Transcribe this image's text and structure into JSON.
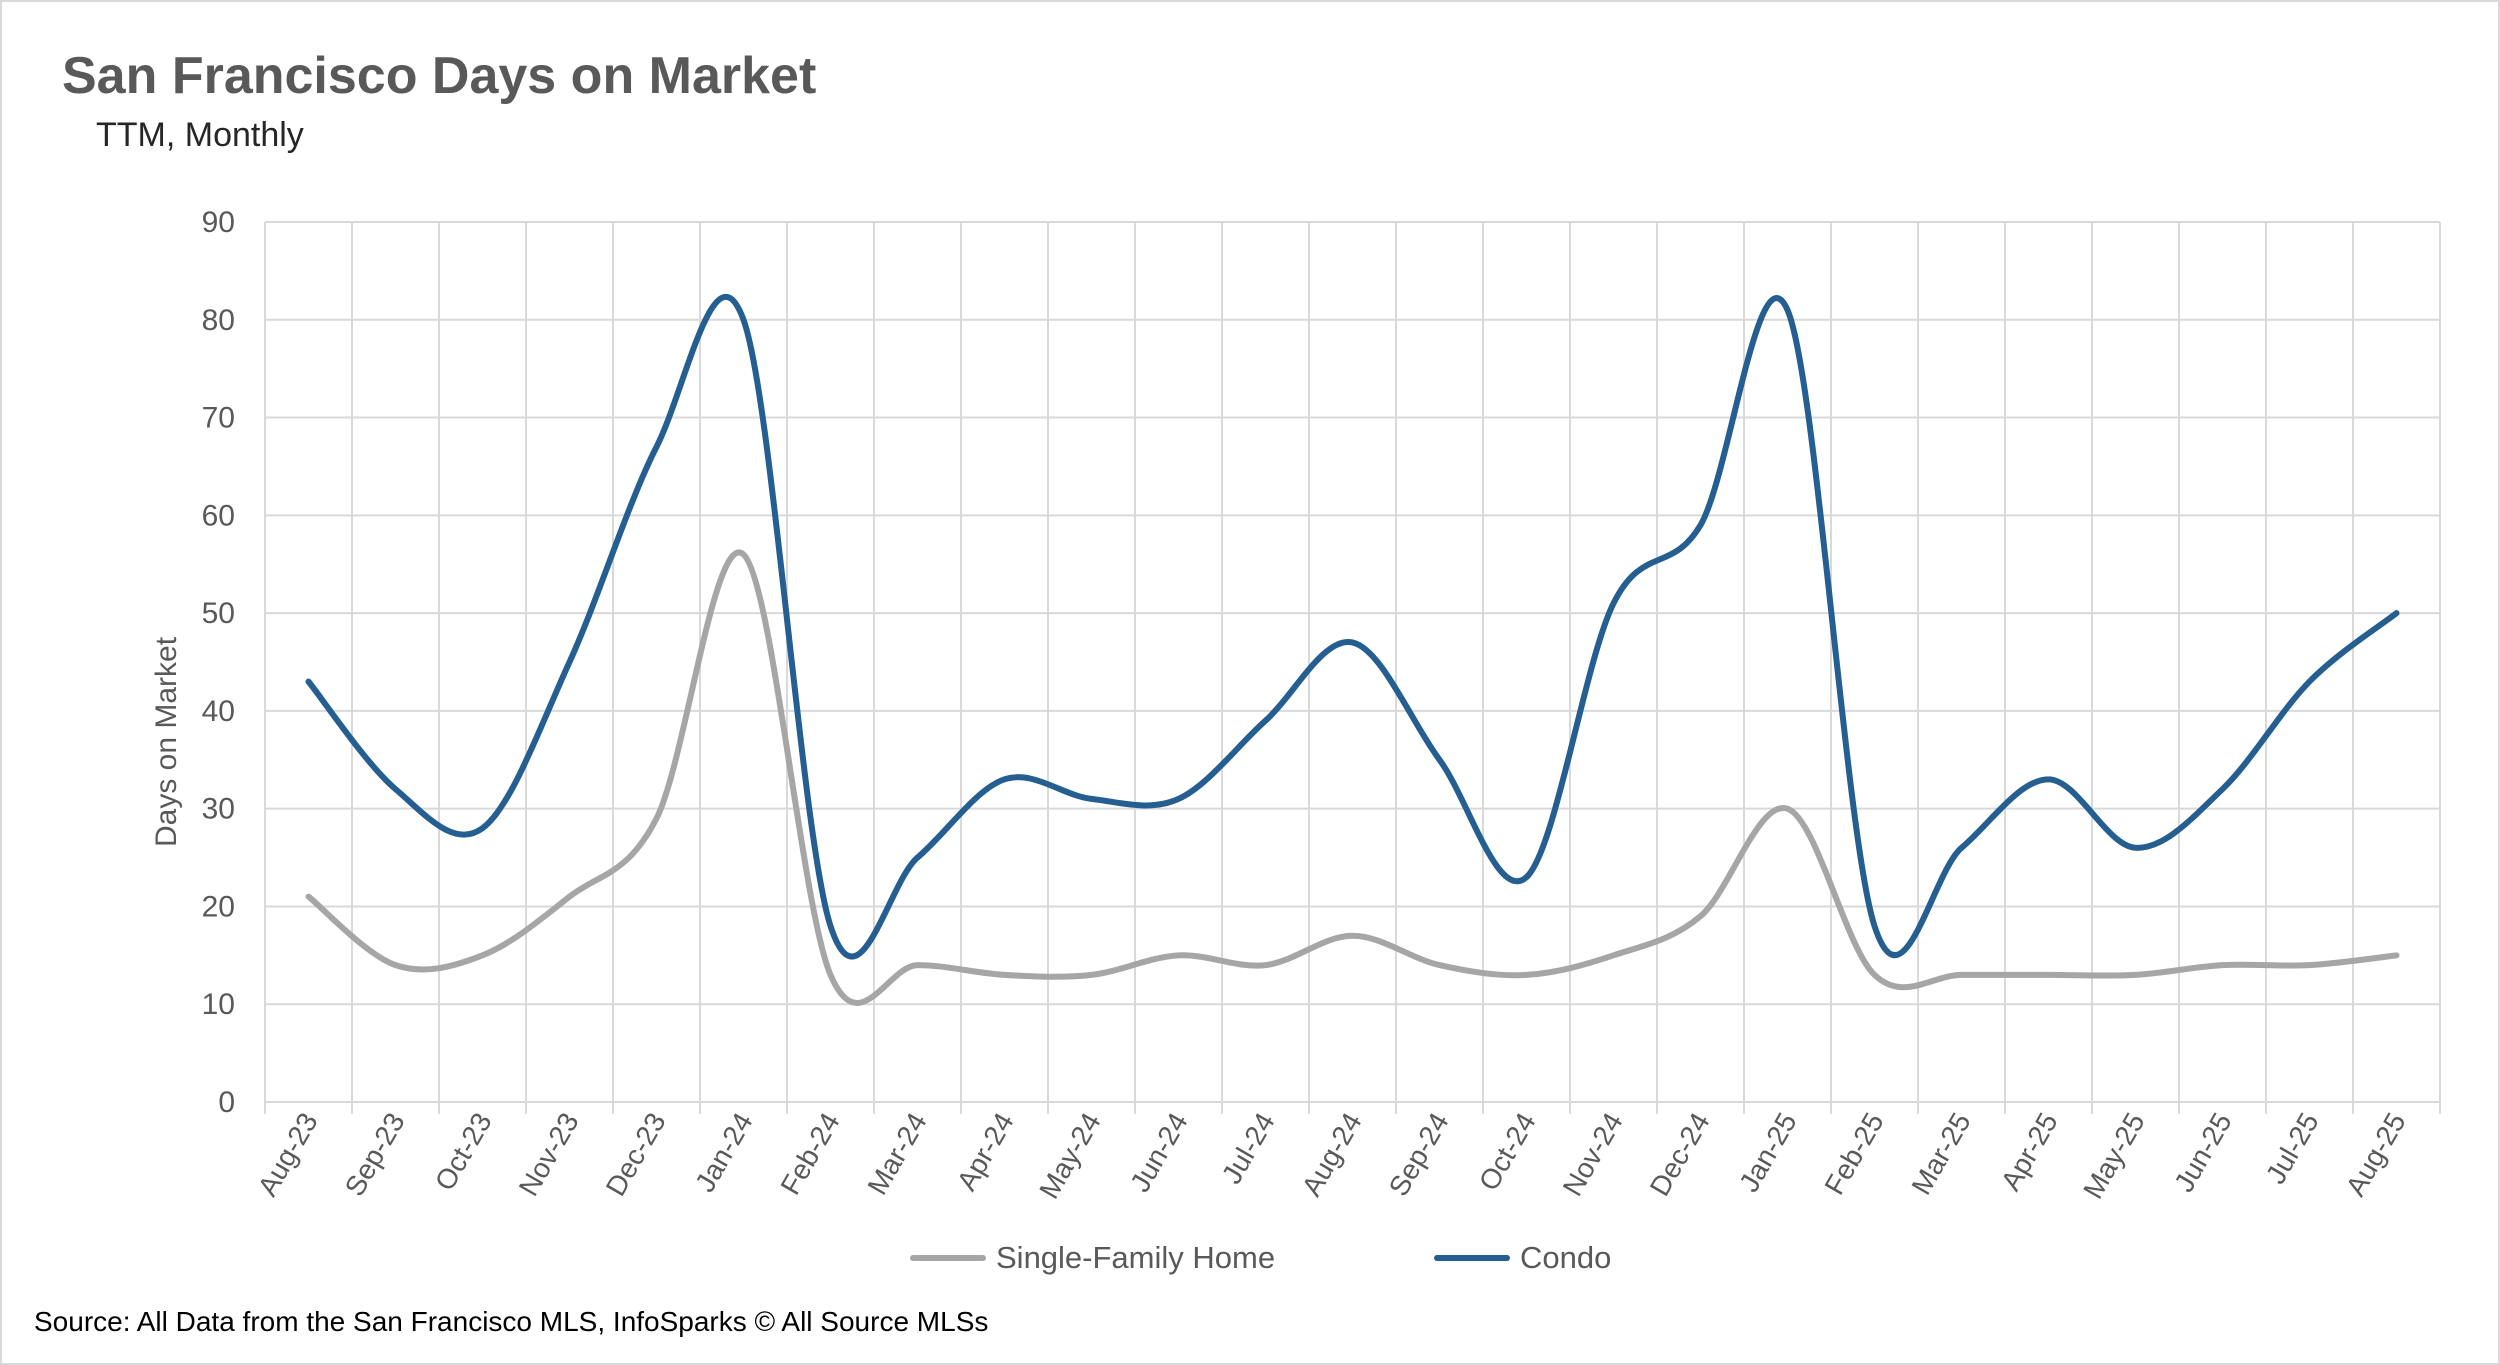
{
  "chart_data": {
    "type": "line",
    "title": "San Francisco Days on Market",
    "subtitle": "TTM, Monthly",
    "xlabel": "",
    "ylabel": "Days on Market",
    "ylim": [
      0,
      90
    ],
    "yticks": [
      0,
      10,
      20,
      30,
      40,
      50,
      60,
      70,
      80,
      90
    ],
    "grid": true,
    "legend_position": "bottom",
    "categories": [
      "Aug-23",
      "Sep-23",
      "Oct-23",
      "Nov-23",
      "Dec-23",
      "Jan-24",
      "Feb-24",
      "Mar-24",
      "Apr-24",
      "May-24",
      "Jun-24",
      "Jul-24",
      "Aug-24",
      "Sep-24",
      "Oct-24",
      "Nov-24",
      "Dec-24",
      "Jan-25",
      "Feb-25",
      "Mar-25",
      "Apr-25",
      "May-25",
      "Jun-25",
      "Jul-25",
      "Aug-25"
    ],
    "series": [
      {
        "name": "Single-Family Home",
        "color": "#a6a6a6",
        "values": [
          21,
          14,
          15,
          21,
          29,
          56,
          13,
          14,
          13,
          13,
          15,
          14,
          17,
          14,
          13,
          15,
          19,
          30,
          13,
          13,
          13,
          13,
          14,
          14,
          15
        ]
      },
      {
        "name": "Condo",
        "color": "#255e91",
        "values": [
          43,
          32,
          28,
          45,
          67,
          80,
          18,
          25,
          33,
          31,
          31,
          39,
          47,
          35,
          23,
          51,
          59,
          81,
          18,
          26,
          33,
          26,
          32,
          43,
          50
        ]
      }
    ],
    "source": "Source: All Data from the San Francisco MLS, InfoSparks © All Source MLSs"
  }
}
